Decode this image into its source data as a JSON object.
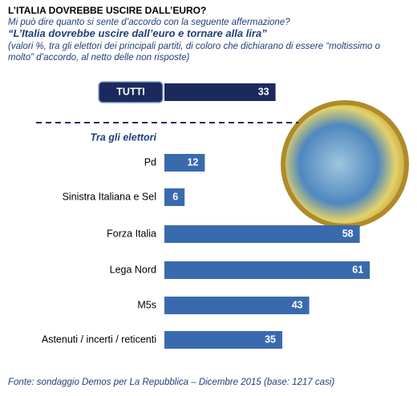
{
  "chart_data": {
    "type": "bar",
    "title": "L’ITALIA  DOVREBBE USCIRE DALL’EURO?",
    "subtitle": "Mi può dire quanto si sente d’accordo con la seguente affermazione?",
    "statement": "“L’Italia dovrebbe uscire dall’euro e tornare alla lira”",
    "note": "(valori %, tra gli elettori dei principali partiti, di coloro che dichiarano di essere “moltissimo o molto” d’accordo, al netto delle non risposte)",
    "total": {
      "label": "TUTTI",
      "value": 33,
      "color": "#1b2a5c"
    },
    "group_label": "Tra gli elettori",
    "categories": [
      "Pd",
      "Sinistra Italiana e Sel",
      "Forza Italia",
      "Lega Nord",
      "M5s",
      "Astenuti / incerti / reticenti"
    ],
    "values": [
      12,
      6,
      58,
      61,
      43,
      35
    ],
    "color": "#3a6aae",
    "source": "Fonte: sondaggio Demos per La Repubblica – Dicembre 2015 (base: 1217 casi)"
  }
}
